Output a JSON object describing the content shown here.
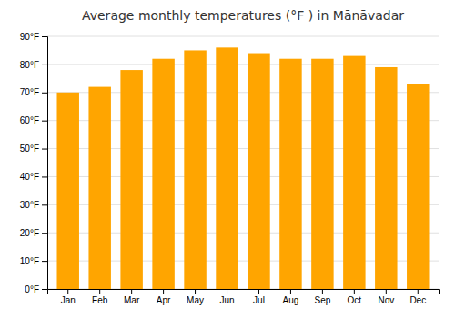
{
  "chart_data": {
    "type": "bar",
    "title": "Average monthly temperatures (°F ) in Mānāvadar",
    "categories": [
      "Jan",
      "Feb",
      "Mar",
      "Apr",
      "May",
      "Jun",
      "Jul",
      "Aug",
      "Sep",
      "Oct",
      "Nov",
      "Dec"
    ],
    "values": [
      70,
      72,
      78,
      82,
      85,
      86,
      84,
      82,
      82,
      83,
      79,
      73
    ],
    "color": "#FFA500",
    "ylim": [
      0,
      90
    ],
    "yticks": [
      {
        "value": 0,
        "label": "0°F"
      },
      {
        "value": 10,
        "label": "10°F"
      },
      {
        "value": 20,
        "label": "20°F"
      },
      {
        "value": 30,
        "label": "30°F"
      },
      {
        "value": 40,
        "label": "40°F"
      },
      {
        "value": 50,
        "label": "50°F"
      },
      {
        "value": 60,
        "label": "60°F"
      },
      {
        "value": 70,
        "label": "70°F"
      },
      {
        "value": 80,
        "label": "80°F"
      },
      {
        "value": 90,
        "label": "90°F"
      }
    ],
    "grid": true
  }
}
